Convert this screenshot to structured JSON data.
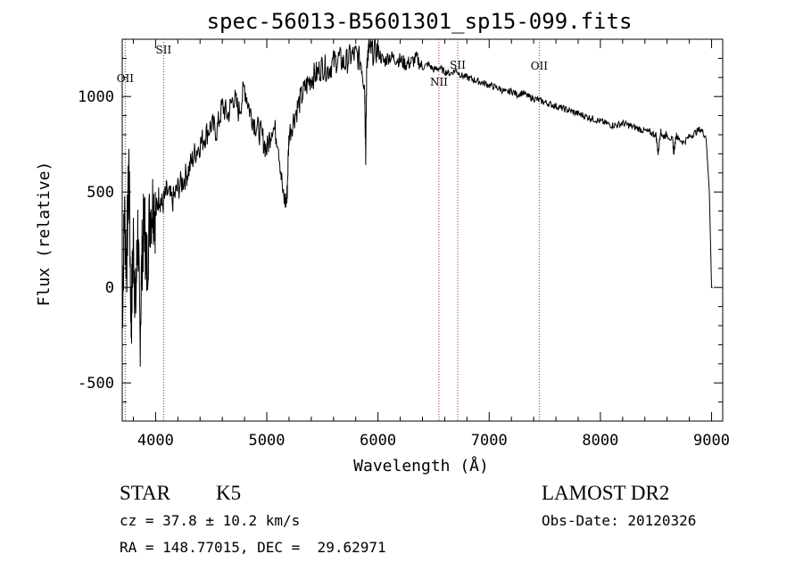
{
  "chart_data": {
    "type": "line",
    "title": "spec-56013-B5601301_sp15-099.fits",
    "xlabel": "Wavelength (Å)",
    "ylabel": "Flux (relative)",
    "xlim": [
      3700,
      9100
    ],
    "ylim": [
      -700,
      1300
    ],
    "xticks": [
      4000,
      5000,
      6000,
      7000,
      8000,
      9000
    ],
    "yticks": [
      -500,
      0,
      500,
      1000
    ],
    "series": [
      {
        "name": "flux",
        "x": [
          3700,
          3720,
          3740,
          3760,
          3780,
          3800,
          3820,
          3840,
          3860,
          3880,
          3900,
          3920,
          3950,
          3980,
          4000,
          4030,
          4060,
          4100,
          4150,
          4200,
          4250,
          4300,
          4350,
          4400,
          4450,
          4500,
          4550,
          4600,
          4650,
          4700,
          4750,
          4800,
          4850,
          4900,
          4950,
          5000,
          5050,
          5100,
          5150,
          5180,
          5200,
          5250,
          5300,
          5350,
          5400,
          5450,
          5500,
          5550,
          5600,
          5650,
          5700,
          5750,
          5800,
          5850,
          5880,
          5890,
          5900,
          5920,
          5950,
          6000,
          6050,
          6100,
          6150,
          6200,
          6250,
          6300,
          6350,
          6400,
          6450,
          6500,
          6550,
          6600,
          6650,
          6700,
          6750,
          6800,
          6850,
          6900,
          6950,
          7000,
          7050,
          7100,
          7150,
          7200,
          7250,
          7300,
          7350,
          7400,
          7450,
          7500,
          7550,
          7600,
          7650,
          7700,
          7750,
          7800,
          7850,
          7900,
          7950,
          8000,
          8050,
          8100,
          8150,
          8200,
          8250,
          8300,
          8350,
          8400,
          8450,
          8500,
          8520,
          8540,
          8560,
          8600,
          8650,
          8660,
          8680,
          8700,
          8750,
          8800,
          8850,
          8900,
          8950,
          8980,
          9000,
          9010
        ],
        "values": [
          -150,
          380,
          120,
          650,
          -200,
          250,
          -100,
          300,
          -250,
          200,
          350,
          100,
          400,
          450,
          380,
          480,
          430,
          500,
          450,
          520,
          560,
          620,
          700,
          750,
          800,
          850,
          820,
          950,
          900,
          1000,
          920,
          1050,
          920,
          850,
          800,
          720,
          850,
          780,
          460,
          450,
          800,
          900,
          980,
          1050,
          1100,
          1120,
          1160,
          1140,
          1180,
          1200,
          1170,
          1210,
          1220,
          1180,
          1050,
          700,
          1200,
          1250,
          1230,
          1240,
          1180,
          1210,
          1200,
          1190,
          1170,
          1180,
          1200,
          1150,
          1170,
          1140,
          1150,
          1130,
          1120,
          1140,
          1110,
          1100,
          1090,
          1080,
          1070,
          1060,
          1050,
          1040,
          1020,
          1030,
          1010,
          1020,
          1000,
          990,
          980,
          970,
          960,
          950,
          940,
          930,
          920,
          910,
          900,
          890,
          880,
          870,
          860,
          850,
          850,
          860,
          850,
          840,
          830,
          820,
          810,
          800,
          700,
          820,
          790,
          800,
          770,
          700,
          800,
          780,
          760,
          790,
          810,
          830,
          790,
          500,
          0,
          0
        ]
      }
    ],
    "emission_lines": [
      {
        "label": "OII",
        "x": 3727
      },
      {
        "label": "SII",
        "x": 4072
      },
      {
        "label": "NII",
        "x": 6548
      },
      {
        "label": "SII",
        "x": 6717
      },
      {
        "label": "OII",
        "x": 7450
      }
    ]
  },
  "info": {
    "class": "STAR",
    "subclass": "K5",
    "survey": "LAMOST DR2",
    "cz_line": "cz = 37.8 ± 10.2 km/s",
    "obs_date": "Obs-Date: 20120326",
    "radec_line": "RA = 148.77015, DEC =  29.62971"
  }
}
